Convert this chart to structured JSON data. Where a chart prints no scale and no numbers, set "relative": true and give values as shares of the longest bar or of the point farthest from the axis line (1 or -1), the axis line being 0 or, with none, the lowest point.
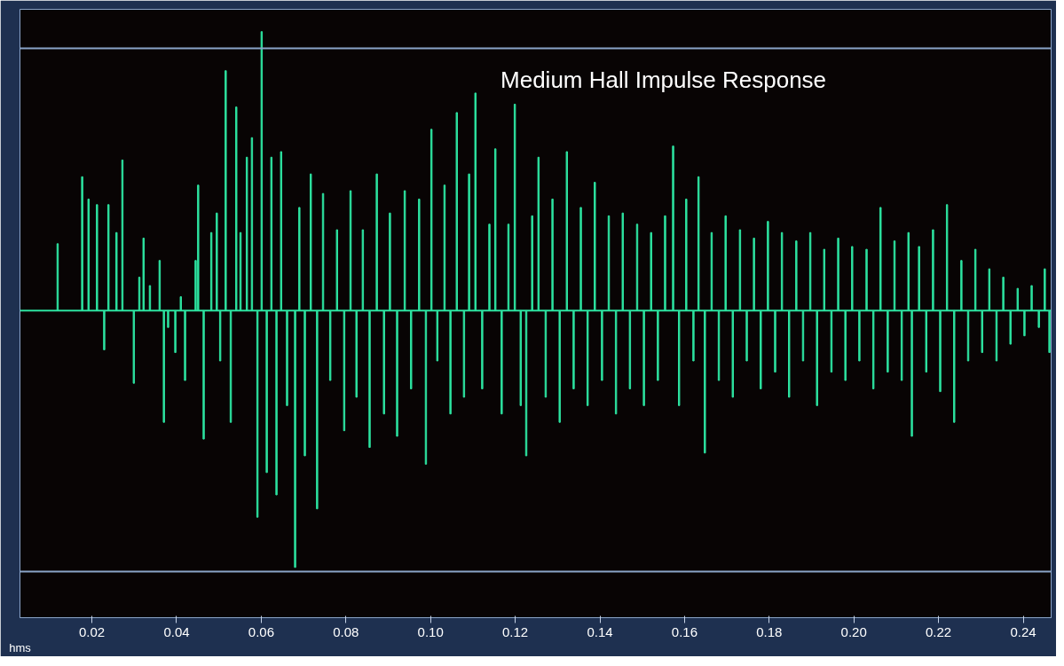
{
  "chart_data": {
    "type": "bar",
    "title": "Medium Hall Impulse Response",
    "xlabel": "hms",
    "relative": true,
    "grid": false,
    "tick_labels": "x",
    "xlim": [
      0.003,
      0.2466
    ],
    "xticks": [
      {
        "value": 0.02,
        "label": "0.02"
      },
      {
        "value": 0.04,
        "label": "0.04"
      },
      {
        "value": 0.06,
        "label": "0.06"
      },
      {
        "value": 0.08,
        "label": "0.08"
      },
      {
        "value": 0.1,
        "label": "0.10"
      },
      {
        "value": 0.12,
        "label": "0.12"
      },
      {
        "value": 0.14,
        "label": "0.14"
      },
      {
        "value": 0.16,
        "label": "0.16"
      },
      {
        "value": 0.18,
        "label": "0.18"
      },
      {
        "value": 0.2,
        "label": "0.20"
      },
      {
        "value": 0.22,
        "label": "0.22"
      },
      {
        "value": 0.24,
        "label": "0.24"
      }
    ],
    "ref_lines": [
      {
        "axis": "y",
        "value": 0.94,
        "color": "#8aa4c8"
      },
      {
        "axis": "y",
        "value": -0.935,
        "color": "#8aa4c8"
      },
      {
        "axis": "y",
        "value": 0,
        "color": "#2de3a0"
      }
    ],
    "series": [
      {
        "color": "#2de3a0",
        "x": [
          0.0119,
          0.0177,
          0.0192,
          0.0212,
          0.0229,
          0.0239,
          0.0258,
          0.0272,
          0.0299,
          0.0312,
          0.0322,
          0.0337,
          0.036,
          0.037,
          0.038,
          0.0397,
          0.041,
          0.042,
          0.0445,
          0.0451,
          0.0464,
          0.0482,
          0.0495,
          0.0503,
          0.0516,
          0.0528,
          0.0541,
          0.0551,
          0.0566,
          0.0578,
          0.0591,
          0.0601,
          0.0613,
          0.0624,
          0.0636,
          0.0647,
          0.0661,
          0.068,
          0.069,
          0.0703,
          0.0717,
          0.0732,
          0.0746,
          0.0763,
          0.0779,
          0.0796,
          0.0811,
          0.0825,
          0.084,
          0.0856,
          0.0873,
          0.089,
          0.0904,
          0.0921,
          0.0939,
          0.0954,
          0.0973,
          0.0989,
          0.1002,
          0.1016,
          0.1033,
          0.1047,
          0.1062,
          0.1079,
          0.1091,
          0.1106,
          0.1122,
          0.1139,
          0.1153,
          0.1168,
          0.1184,
          0.1199,
          0.1213,
          0.1226,
          0.124,
          0.1255,
          0.1272,
          0.1288,
          0.1305,
          0.1322,
          0.1338,
          0.1355,
          0.1371,
          0.1388,
          0.1405,
          0.1421,
          0.1438,
          0.1454,
          0.1471,
          0.1488,
          0.1504,
          0.1521,
          0.1537,
          0.1554,
          0.1573,
          0.1587,
          0.1604,
          0.1621,
          0.1633,
          0.1648,
          0.1664,
          0.1681,
          0.1697,
          0.1714,
          0.1731,
          0.1747,
          0.1764,
          0.178,
          0.1797,
          0.1814,
          0.183,
          0.1847,
          0.1864,
          0.188,
          0.1897,
          0.1913,
          0.193,
          0.1947,
          0.1963,
          0.198,
          0.1996,
          0.2013,
          0.203,
          0.2046,
          0.2063,
          0.208,
          0.2096,
          0.2113,
          0.2129,
          0.2137,
          0.2154,
          0.2171,
          0.2187,
          0.2204,
          0.222,
          0.2237,
          0.2254,
          0.227,
          0.2287,
          0.2303,
          0.232,
          0.2337,
          0.2353,
          0.237,
          0.2387,
          0.2403,
          0.242,
          0.2437,
          0.2451,
          0.2462
        ],
        "values": [
          0.24,
          0.48,
          0.4,
          0.38,
          -0.14,
          0.38,
          0.28,
          0.54,
          -0.26,
          0.12,
          0.26,
          0.09,
          0.18,
          -0.4,
          -0.06,
          -0.15,
          0.05,
          -0.25,
          0.18,
          0.45,
          -0.46,
          0.28,
          0.35,
          -0.18,
          0.86,
          -0.4,
          0.73,
          0.28,
          0.55,
          0.62,
          -0.74,
          1.0,
          -0.58,
          0.55,
          -0.66,
          0.57,
          -0.34,
          -0.92,
          0.37,
          -0.52,
          0.49,
          -0.71,
          0.42,
          -0.25,
          0.29,
          -0.43,
          0.43,
          -0.31,
          0.29,
          -0.49,
          0.49,
          -0.37,
          0.35,
          -0.45,
          0.43,
          -0.28,
          0.4,
          -0.55,
          0.65,
          -0.18,
          0.45,
          -0.37,
          0.71,
          -0.31,
          0.49,
          0.78,
          -0.28,
          0.31,
          0.58,
          -0.37,
          0.31,
          0.74,
          -0.34,
          -0.52,
          0.34,
          0.55,
          -0.31,
          0.4,
          -0.4,
          0.57,
          -0.28,
          0.37,
          -0.34,
          0.46,
          -0.25,
          0.34,
          -0.37,
          0.35,
          -0.28,
          0.31,
          -0.34,
          0.28,
          -0.25,
          0.34,
          0.59,
          -0.34,
          0.4,
          -0.18,
          0.48,
          -0.51,
          0.28,
          -0.25,
          0.34,
          -0.31,
          0.29,
          -0.18,
          0.26,
          -0.28,
          0.32,
          -0.22,
          0.28,
          -0.31,
          0.25,
          -0.18,
          0.28,
          -0.34,
          0.22,
          -0.22,
          0.26,
          -0.25,
          0.23,
          -0.18,
          0.22,
          -0.28,
          0.37,
          -0.22,
          0.25,
          -0.25,
          0.28,
          -0.45,
          0.23,
          -0.22,
          0.29,
          -0.29,
          0.38,
          -0.4,
          0.18,
          -0.18,
          0.22,
          -0.15,
          0.15,
          -0.18,
          0.12,
          -0.12,
          0.08,
          -0.09,
          0.09,
          -0.06,
          0.15,
          -0.15
        ]
      }
    ]
  }
}
